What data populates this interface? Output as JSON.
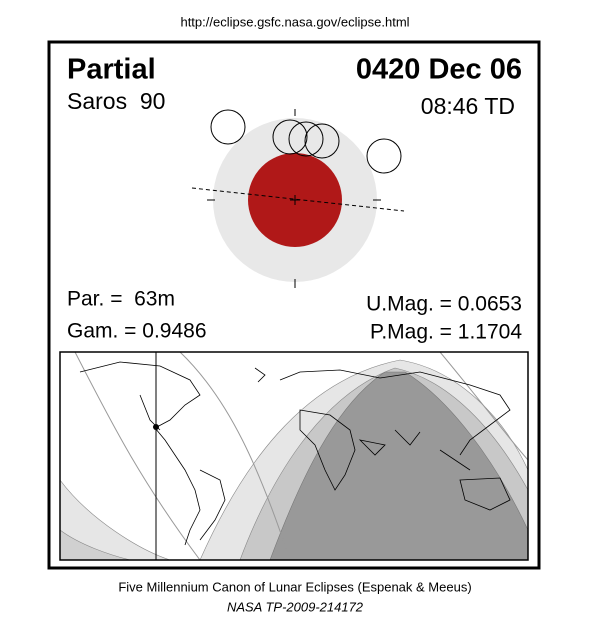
{
  "url": "http://eclipse.gsfc.nasa.gov/eclipse.html",
  "eclipse": {
    "type": "Partial",
    "date": "0420 Dec 06",
    "saros": "Saros  90",
    "time": "08:46 TD",
    "parameters": [
      "Par. =  63m",
      "Gam. = 0.9486",
      "U.Mag. = 0.0653",
      "P.Mag. = 1.1704"
    ]
  },
  "footer": {
    "line1": "Five Millennium Canon of Lunar Eclipses (Espenak & Meeus)",
    "line2": "NASA TP-2009-214172"
  }
}
